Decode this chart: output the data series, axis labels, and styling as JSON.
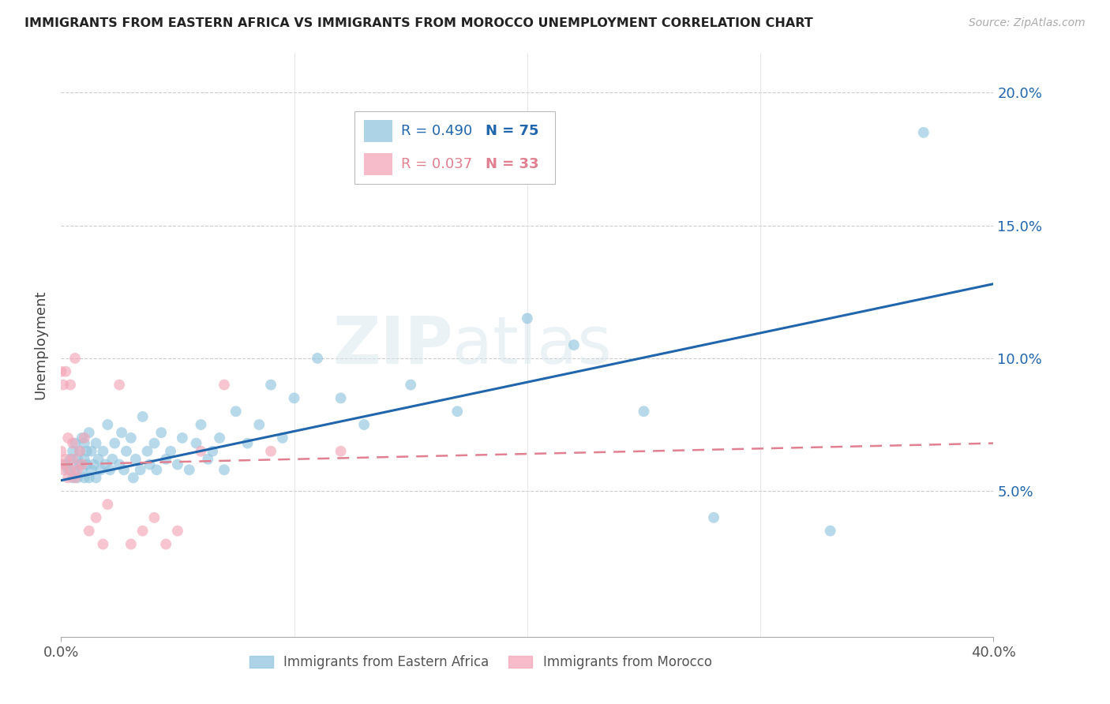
{
  "title": "IMMIGRANTS FROM EASTERN AFRICA VS IMMIGRANTS FROM MOROCCO UNEMPLOYMENT CORRELATION CHART",
  "source": "Source: ZipAtlas.com",
  "ylabel": "Unemployment",
  "yticks": [
    0.0,
    0.05,
    0.1,
    0.15,
    0.2
  ],
  "ytick_labels": [
    "",
    "5.0%",
    "10.0%",
    "15.0%",
    "20.0%"
  ],
  "xlim": [
    0.0,
    0.4
  ],
  "ylim": [
    -0.005,
    0.215
  ],
  "color_blue": "#92c5de",
  "color_pink": "#f4a6b8",
  "color_blue_line": "#2166ac",
  "color_pink_line": "#d6604d",
  "color_pink_line2": "#e08090",
  "watermark_text": "ZIPatlas",
  "blue_scatter_x": [
    0.002,
    0.003,
    0.004,
    0.005,
    0.005,
    0.006,
    0.006,
    0.007,
    0.007,
    0.008,
    0.008,
    0.009,
    0.009,
    0.01,
    0.01,
    0.01,
    0.011,
    0.011,
    0.012,
    0.012,
    0.013,
    0.013,
    0.014,
    0.015,
    0.015,
    0.016,
    0.017,
    0.018,
    0.019,
    0.02,
    0.021,
    0.022,
    0.023,
    0.025,
    0.026,
    0.027,
    0.028,
    0.03,
    0.031,
    0.032,
    0.034,
    0.035,
    0.037,
    0.038,
    0.04,
    0.041,
    0.043,
    0.045,
    0.047,
    0.05,
    0.052,
    0.055,
    0.058,
    0.06,
    0.063,
    0.065,
    0.068,
    0.07,
    0.075,
    0.08,
    0.085,
    0.09,
    0.095,
    0.1,
    0.11,
    0.12,
    0.13,
    0.15,
    0.17,
    0.2,
    0.22,
    0.25,
    0.28,
    0.33,
    0.37
  ],
  "blue_scatter_y": [
    0.06,
    0.058,
    0.062,
    0.055,
    0.065,
    0.058,
    0.068,
    0.055,
    0.062,
    0.06,
    0.065,
    0.058,
    0.07,
    0.055,
    0.062,
    0.068,
    0.06,
    0.065,
    0.055,
    0.072,
    0.058,
    0.065,
    0.06,
    0.055,
    0.068,
    0.062,
    0.058,
    0.065,
    0.06,
    0.075,
    0.058,
    0.062,
    0.068,
    0.06,
    0.072,
    0.058,
    0.065,
    0.07,
    0.055,
    0.062,
    0.058,
    0.078,
    0.065,
    0.06,
    0.068,
    0.058,
    0.072,
    0.062,
    0.065,
    0.06,
    0.07,
    0.058,
    0.068,
    0.075,
    0.062,
    0.065,
    0.07,
    0.058,
    0.08,
    0.068,
    0.075,
    0.09,
    0.07,
    0.085,
    0.1,
    0.085,
    0.075,
    0.09,
    0.08,
    0.115,
    0.105,
    0.08,
    0.04,
    0.035,
    0.185
  ],
  "pink_scatter_x": [
    0.0,
    0.0,
    0.0,
    0.001,
    0.001,
    0.002,
    0.002,
    0.003,
    0.003,
    0.004,
    0.004,
    0.005,
    0.005,
    0.006,
    0.006,
    0.007,
    0.008,
    0.009,
    0.01,
    0.012,
    0.015,
    0.018,
    0.02,
    0.025,
    0.03,
    0.035,
    0.04,
    0.045,
    0.05,
    0.06,
    0.07,
    0.09,
    0.12
  ],
  "pink_scatter_y": [
    0.06,
    0.065,
    0.095,
    0.058,
    0.09,
    0.062,
    0.095,
    0.055,
    0.07,
    0.058,
    0.09,
    0.062,
    0.068,
    0.055,
    0.1,
    0.058,
    0.065,
    0.06,
    0.07,
    0.035,
    0.04,
    0.03,
    0.045,
    0.09,
    0.03,
    0.035,
    0.04,
    0.03,
    0.035,
    0.065,
    0.09,
    0.065,
    0.065
  ],
  "blue_line_x": [
    0.0,
    0.4
  ],
  "blue_line_y": [
    0.054,
    0.128
  ],
  "pink_line_x": [
    0.0,
    0.4
  ],
  "pink_line_y": [
    0.06,
    0.068
  ]
}
